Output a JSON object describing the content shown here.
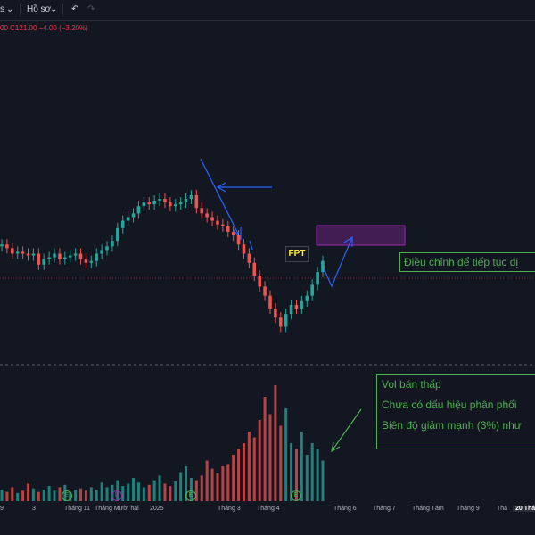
{
  "toolbar": {
    "left_fragment": "s",
    "profile_label": "Hồ sơ",
    "dropdown_icon": "chevron-down-icon",
    "undo_icon": "undo-icon",
    "redo_icon": "redo-icon"
  },
  "legend": {
    "prefix": "00",
    "close_text": "C121.00",
    "change_text": "−4.00 (−3.20%)"
  },
  "fpt_label": "FPT",
  "annotations": {
    "right_note": "Điều chỉnh để tiếp tục đị",
    "vol_line1": "Vol bán thấp",
    "vol_line2": "Chưa có dấu hiệu phân phối",
    "vol_line3": "Biên độ giảm mạnh (3%) như"
  },
  "time_axis": {
    "ticks": [
      "9",
      "3",
      "Tháng 11",
      "Tháng Mười hai",
      "2025",
      "Tháng 3",
      "Tháng 4",
      "Tháng 6",
      "Tháng 7",
      "Tháng Tám",
      "Tháng 9",
      "Thá",
      "20 Tháng"
    ]
  },
  "events": [
    {
      "letter": "E",
      "color": "#4caf50"
    },
    {
      "letter": "D",
      "color": "#9c27b0"
    },
    {
      "letter": "E",
      "color": "#4caf50"
    },
    {
      "letter": "E",
      "color": "#4caf50"
    }
  ],
  "colors": {
    "up": "#26a69a",
    "down": "#ef5350",
    "background": "#131722",
    "arrow": "#2962ff",
    "annotation": "#4caf50",
    "zone": "#9c27b0"
  },
  "chart_data": {
    "type": "candlestick",
    "series": [
      {
        "name": "price",
        "shape": [
          0.55,
          0.53,
          0.5,
          0.51,
          0.5,
          0.49,
          0.5,
          0.44,
          0.47,
          0.48,
          0.5,
          0.47,
          0.48,
          0.49,
          0.5,
          0.47,
          0.45,
          0.46,
          0.5,
          0.52,
          0.54,
          0.57,
          0.64,
          0.68,
          0.7,
          0.72,
          0.76,
          0.78,
          0.77,
          0.79,
          0.8,
          0.78,
          0.76,
          0.77,
          0.78,
          0.8,
          0.82,
          0.75,
          0.72,
          0.7,
          0.68,
          0.66,
          0.65,
          0.62,
          0.6,
          0.55,
          0.5,
          0.45,
          0.38,
          0.32,
          0.27,
          0.2,
          0.15,
          0.1,
          0.17,
          0.22,
          0.2,
          0.24,
          0.27,
          0.33,
          0.4,
          0.46
        ]
      },
      {
        "name": "volume",
        "shape": [
          0.1,
          0.08,
          0.12,
          0.07,
          0.09,
          0.15,
          0.11,
          0.08,
          0.1,
          0.13,
          0.09,
          0.12,
          0.14,
          0.08,
          0.1,
          0.11,
          0.09,
          0.12,
          0.1,
          0.16,
          0.12,
          0.14,
          0.18,
          0.13,
          0.15,
          0.2,
          0.16,
          0.12,
          0.14,
          0.18,
          0.22,
          0.15,
          0.13,
          0.17,
          0.25,
          0.3,
          0.2,
          0.18,
          0.22,
          0.35,
          0.28,
          0.24,
          0.3,
          0.32,
          0.4,
          0.45,
          0.5,
          0.6,
          0.55,
          0.7,
          0.9,
          0.75,
          1.0,
          0.65,
          0.8,
          0.5,
          0.45,
          0.6,
          0.4,
          0.5,
          0.45,
          0.35
        ]
      }
    ]
  }
}
